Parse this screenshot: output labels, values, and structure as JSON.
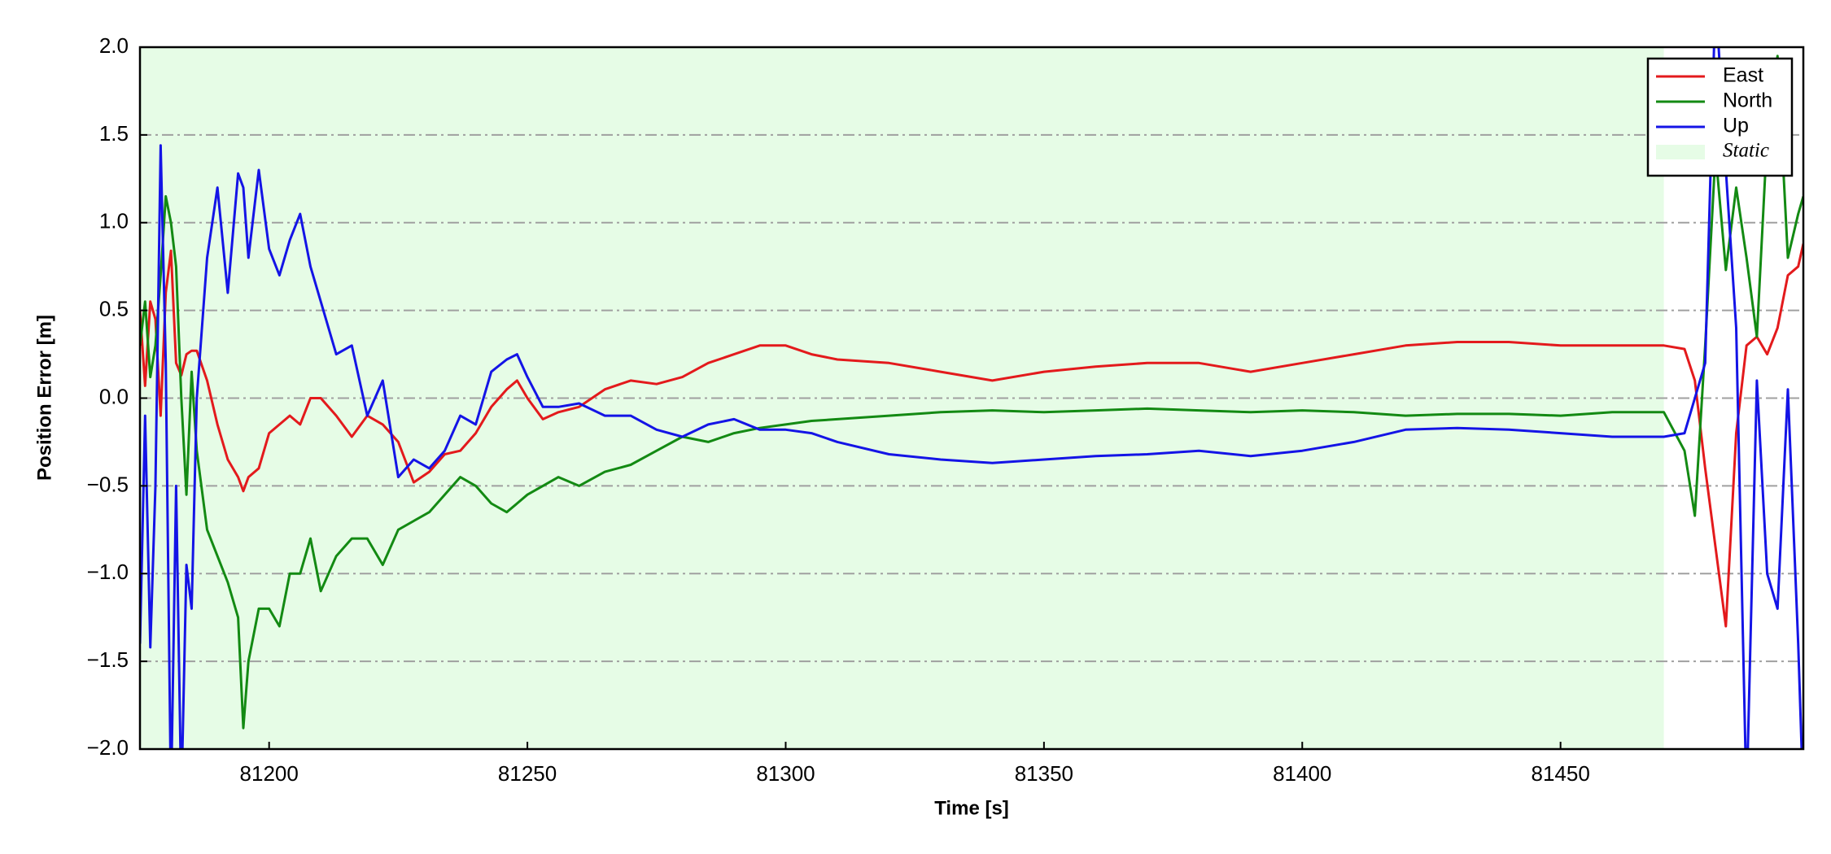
{
  "chart_data": {
    "type": "line",
    "xlabel": "Time [s]",
    "ylabel": "Position Error [m]",
    "x": [
      81175,
      81176,
      81177,
      81178,
      81179,
      81180,
      81181,
      81182,
      81183,
      81184,
      81185,
      81186,
      81188,
      81190,
      81192,
      81194,
      81195,
      81196,
      81198,
      81200,
      81202,
      81204,
      81206,
      81208,
      81210,
      81213,
      81216,
      81219,
      81222,
      81225,
      81228,
      81231,
      81234,
      81237,
      81240,
      81243,
      81246,
      81248,
      81250,
      81253,
      81256,
      81260,
      81265,
      81270,
      81275,
      81280,
      81285,
      81290,
      81295,
      81300,
      81305,
      81310,
      81320,
      81330,
      81340,
      81350,
      81360,
      81370,
      81380,
      81390,
      81400,
      81410,
      81420,
      81430,
      81440,
      81450,
      81460,
      81470,
      81474,
      81476,
      81478,
      81480,
      81482,
      81484,
      81486,
      81488,
      81490,
      81492,
      81494,
      81496,
      81497
    ],
    "series": [
      {
        "name": "East",
        "color": "#e31a1c",
        "values": [
          0.5,
          0.07,
          0.55,
          0.45,
          -0.1,
          0.6,
          0.84,
          0.2,
          0.13,
          0.25,
          0.27,
          0.27,
          0.1,
          -0.15,
          -0.35,
          -0.45,
          -0.53,
          -0.45,
          -0.4,
          -0.2,
          -0.15,
          -0.1,
          -0.15,
          0.0,
          0.0,
          -0.1,
          -0.22,
          -0.1,
          -0.15,
          -0.25,
          -0.48,
          -0.42,
          -0.32,
          -0.3,
          -0.2,
          -0.05,
          0.05,
          0.1,
          0.0,
          -0.12,
          -0.08,
          -0.05,
          0.05,
          0.1,
          0.08,
          0.12,
          0.2,
          0.25,
          0.3,
          0.3,
          0.25,
          0.22,
          0.2,
          0.15,
          0.1,
          0.15,
          0.18,
          0.2,
          0.2,
          0.15,
          0.2,
          0.25,
          0.3,
          0.32,
          0.32,
          0.3,
          0.3,
          0.3,
          0.28,
          0.1,
          -0.4,
          -0.85,
          -1.3,
          -0.2,
          0.3,
          0.35,
          0.25,
          0.4,
          0.7,
          0.75,
          0.88
        ]
      },
      {
        "name": "North",
        "color": "#138a13",
        "values": [
          0.3,
          0.55,
          0.12,
          0.3,
          0.7,
          1.15,
          1.0,
          0.75,
          0.0,
          -0.55,
          0.15,
          -0.3,
          -0.75,
          -0.9,
          -1.05,
          -1.25,
          -1.88,
          -1.5,
          -1.2,
          -1.2,
          -1.3,
          -1.0,
          -1.0,
          -0.8,
          -1.1,
          -0.9,
          -0.8,
          -0.8,
          -0.95,
          -0.75,
          -0.7,
          -0.65,
          -0.55,
          -0.45,
          -0.5,
          -0.6,
          -0.65,
          -0.6,
          -0.55,
          -0.5,
          -0.45,
          -0.5,
          -0.42,
          -0.38,
          -0.3,
          -0.22,
          -0.25,
          -0.2,
          -0.17,
          -0.15,
          -0.13,
          -0.12,
          -0.1,
          -0.08,
          -0.07,
          -0.08,
          -0.07,
          -0.06,
          -0.07,
          -0.08,
          -0.07,
          -0.08,
          -0.1,
          -0.09,
          -0.09,
          -0.1,
          -0.08,
          -0.08,
          -0.3,
          -0.67,
          0.3,
          1.4,
          0.73,
          1.2,
          0.8,
          0.35,
          1.5,
          1.95,
          0.8,
          1.05,
          1.15
        ]
      },
      {
        "name": "Up",
        "color": "#1414e6",
        "values": [
          -1.4,
          -0.1,
          -1.42,
          -0.5,
          1.44,
          0.2,
          -2.3,
          -0.5,
          -2.3,
          -0.95,
          -1.2,
          0.0,
          0.8,
          1.2,
          0.6,
          1.28,
          1.2,
          0.8,
          1.3,
          0.85,
          0.7,
          0.9,
          1.05,
          0.75,
          0.55,
          0.25,
          0.3,
          -0.1,
          0.1,
          -0.45,
          -0.35,
          -0.4,
          -0.3,
          -0.1,
          -0.15,
          0.15,
          0.22,
          0.25,
          0.12,
          -0.05,
          -0.05,
          -0.03,
          -0.1,
          -0.1,
          -0.18,
          -0.22,
          -0.15,
          -0.12,
          -0.18,
          -0.18,
          -0.2,
          -0.25,
          -0.32,
          -0.35,
          -0.37,
          -0.35,
          -0.33,
          -0.32,
          -0.3,
          -0.33,
          -0.3,
          -0.25,
          -0.18,
          -0.17,
          -0.18,
          -0.2,
          -0.22,
          -0.22,
          -0.2,
          0.0,
          0.2,
          2.3,
          1.3,
          0.4,
          -2.3,
          0.1,
          -1.0,
          -1.2,
          0.05,
          -1.4,
          -2.3
        ]
      }
    ],
    "shade": {
      "name": "Static",
      "xrange": [
        81175,
        81470
      ],
      "color": "#e6fce6"
    },
    "xlim": [
      81175,
      81497
    ],
    "ylim": [
      -2,
      2
    ],
    "xticks": [
      81200,
      81250,
      81300,
      81350,
      81400,
      81450
    ],
    "yticks": [
      {
        "value": -2,
        "label": "−2.0"
      },
      {
        "value": -1.5,
        "label": "−1.5"
      },
      {
        "value": -1,
        "label": "−1.0"
      },
      {
        "value": -0.5,
        "label": "−0.5"
      },
      {
        "value": 0,
        "label": "0.0"
      },
      0.5,
      {
        "value": 1,
        "label": "1.0"
      },
      1.5,
      {
        "value": 2,
        "label": "2.0"
      }
    ],
    "grid": true,
    "legend": "upper right"
  }
}
